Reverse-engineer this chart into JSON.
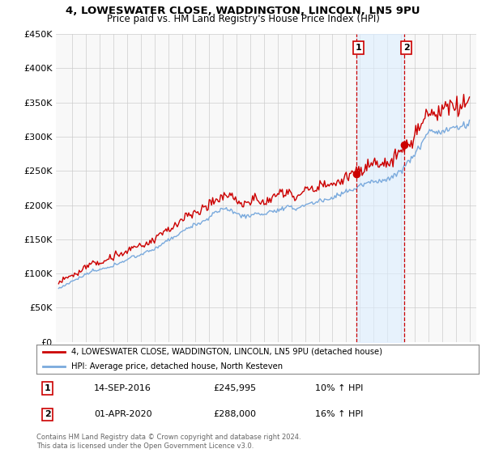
{
  "title": "4, LOWESWATER CLOSE, WADDINGTON, LINCOLN, LN5 9PU",
  "subtitle": "Price paid vs. HM Land Registry's House Price Index (HPI)",
  "legend_line1": "4, LOWESWATER CLOSE, WADDINGTON, LINCOLN, LN5 9PU (detached house)",
  "legend_line2": "HPI: Average price, detached house, North Kesteven",
  "annotation1_label": "1",
  "annotation1_date": "14-SEP-2016",
  "annotation1_price": "£245,995",
  "annotation1_hpi": "10% ↑ HPI",
  "annotation2_label": "2",
  "annotation2_date": "01-APR-2020",
  "annotation2_price": "£288,000",
  "annotation2_hpi": "16% ↑ HPI",
  "footer": "Contains HM Land Registry data © Crown copyright and database right 2024.\nThis data is licensed under the Open Government Licence v3.0.",
  "property_color": "#cc0000",
  "hpi_color": "#7aaadd",
  "vline_color": "#cc0000",
  "shade_color": "#ddeeff",
  "background_color": "#ffffff",
  "plot_bg_color": "#f8f8f8",
  "grid_color": "#cccccc",
  "ylim": [
    0,
    450000
  ],
  "yticks": [
    0,
    50000,
    100000,
    150000,
    200000,
    250000,
    300000,
    350000,
    400000,
    450000
  ],
  "sale1_year": 2016.75,
  "sale2_year": 2020.25,
  "sale1_value": 245995,
  "sale2_value": 288000
}
